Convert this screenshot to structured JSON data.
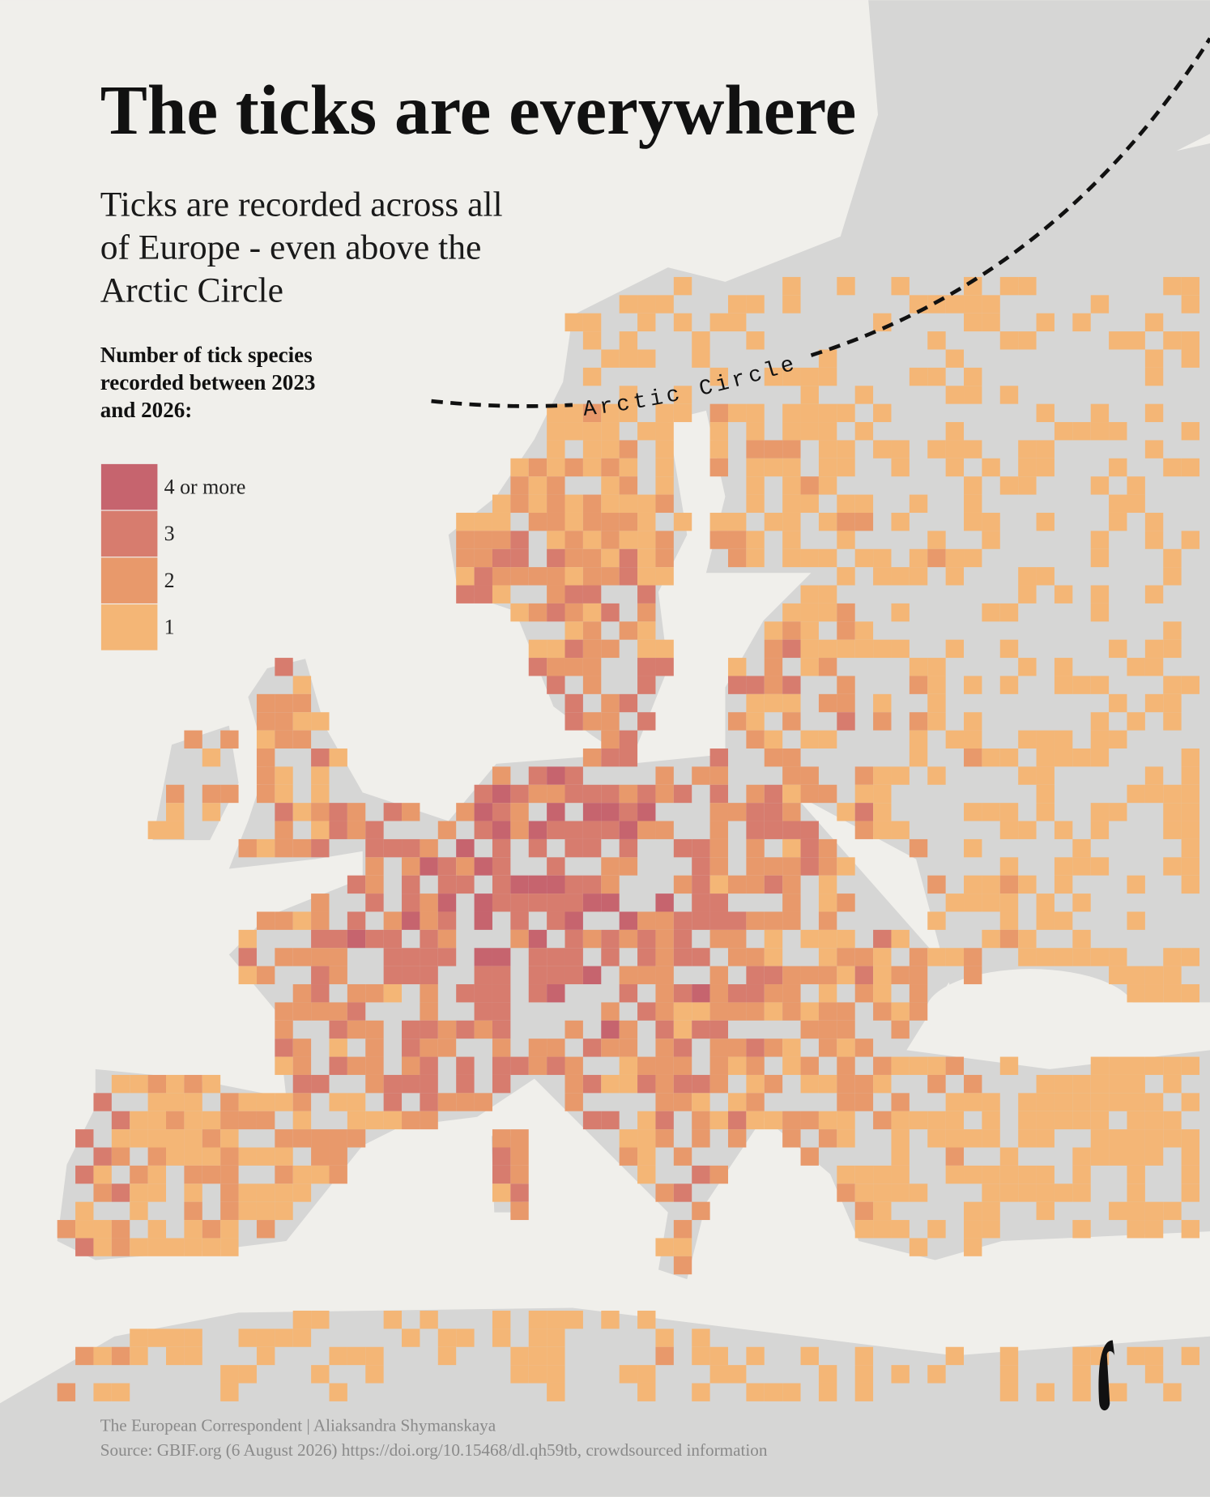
{
  "header": {
    "title": "The ticks are everywhere",
    "subtitle_lines": [
      "Ticks are recorded across all",
      "of Europe - even above the",
      "Arctic Circle"
    ]
  },
  "legend": {
    "title_lines": [
      "Number of tick species",
      "recorded between 2023",
      "and 2026:"
    ],
    "items": [
      {
        "label": "4 or more",
        "color": "#c6646e"
      },
      {
        "label": "3",
        "color": "#d77c6e"
      },
      {
        "label": "2",
        "color": "#e8996b"
      },
      {
        "label": "1",
        "color": "#f4b676"
      }
    ]
  },
  "map": {
    "arctic_label": "Arctic Circle"
  },
  "footer": {
    "credit": "The European Correspondent | Aliaksandra Shymanskaya",
    "source": "Source: GBIF.org (6 August 2026) https://doi.org/10.15468/dl.qh59tb, crowdsourced information"
  }
}
